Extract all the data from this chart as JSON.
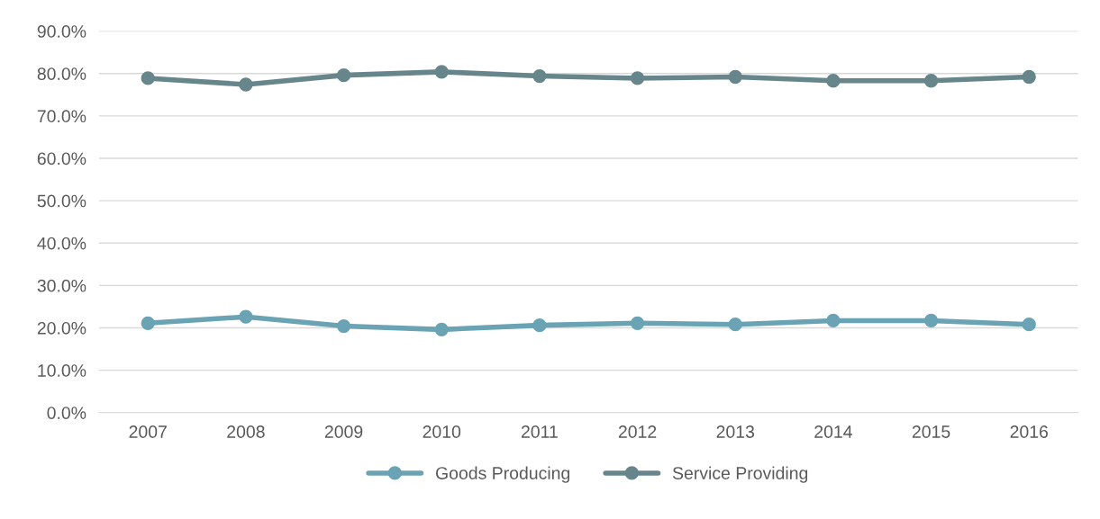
{
  "chart_data": {
    "type": "line",
    "categories": [
      "2007",
      "2008",
      "2009",
      "2010",
      "2011",
      "2012",
      "2013",
      "2014",
      "2015",
      "2016"
    ],
    "series": [
      {
        "name": "Goods Producing",
        "color": "#6aa3b4",
        "values": [
          21.1,
          22.6,
          20.4,
          19.6,
          20.6,
          21.1,
          20.8,
          21.7,
          21.7,
          20.8
        ]
      },
      {
        "name": "Service Providing",
        "color": "#67868b",
        "values": [
          78.9,
          77.4,
          79.6,
          80.4,
          79.4,
          78.9,
          79.2,
          78.3,
          78.3,
          79.2
        ]
      }
    ],
    "ylim": [
      0,
      90
    ],
    "yticks": [
      {
        "value": 0,
        "label": "0.0%"
      },
      {
        "value": 10,
        "label": "10.0%"
      },
      {
        "value": 20,
        "label": "20.0%"
      },
      {
        "value": 30,
        "label": "30.0%"
      },
      {
        "value": 40,
        "label": "40.0%"
      },
      {
        "value": 50,
        "label": "50.0%"
      },
      {
        "value": 60,
        "label": "60.0%"
      },
      {
        "value": 70,
        "label": "70.0%"
      },
      {
        "value": 80,
        "label": "80.0%"
      },
      {
        "value": 90,
        "label": "90.0%"
      }
    ],
    "grid": "y",
    "legend": "bottom",
    "marker": "circle",
    "line_style": "solid"
  }
}
